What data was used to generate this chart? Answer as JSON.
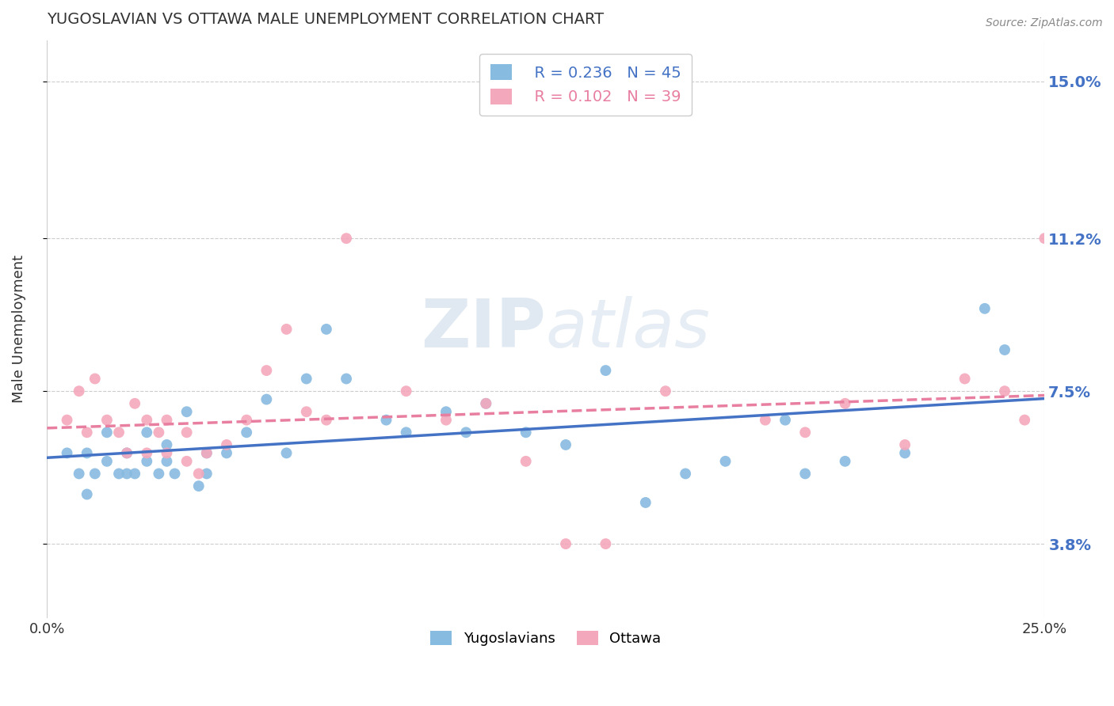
{
  "title": "YUGOSLAVIAN VS OTTAWA MALE UNEMPLOYMENT CORRELATION CHART",
  "source": "Source: ZipAtlas.com",
  "ylabel": "Male Unemployment",
  "xlim": [
    0.0,
    0.25
  ],
  "ylim": [
    0.02,
    0.16
  ],
  "yticks": [
    0.038,
    0.075,
    0.112,
    0.15
  ],
  "ytick_labels": [
    "3.8%",
    "7.5%",
    "11.2%",
    "15.0%"
  ],
  "xticks": [
    0.0,
    0.25
  ],
  "xtick_labels": [
    "0.0%",
    "25.0%"
  ],
  "yugoslavian_color": "#88BBE0",
  "ottawa_color": "#F4A8BC",
  "yugoslavian_line_color": "#4472C4",
  "ottawa_line_color": "#E87FA0",
  "watermark": "ZIPatlas",
  "legend_r_yugo": "R = 0.236",
  "legend_n_yugo": "N = 45",
  "legend_r_ottawa": "R = 0.102",
  "legend_n_ottawa": "N = 39",
  "yugo_scatter_x": [
    0.005,
    0.008,
    0.01,
    0.01,
    0.012,
    0.015,
    0.015,
    0.018,
    0.02,
    0.02,
    0.022,
    0.025,
    0.025,
    0.028,
    0.03,
    0.03,
    0.032,
    0.035,
    0.038,
    0.04,
    0.04,
    0.045,
    0.05,
    0.055,
    0.06,
    0.065,
    0.07,
    0.075,
    0.085,
    0.09,
    0.1,
    0.105,
    0.11,
    0.12,
    0.13,
    0.14,
    0.15,
    0.16,
    0.17,
    0.185,
    0.19,
    0.2,
    0.215,
    0.235,
    0.24
  ],
  "yugo_scatter_y": [
    0.06,
    0.055,
    0.06,
    0.05,
    0.055,
    0.058,
    0.065,
    0.055,
    0.055,
    0.06,
    0.055,
    0.058,
    0.065,
    0.055,
    0.058,
    0.062,
    0.055,
    0.07,
    0.052,
    0.055,
    0.06,
    0.06,
    0.065,
    0.073,
    0.06,
    0.078,
    0.09,
    0.078,
    0.068,
    0.065,
    0.07,
    0.065,
    0.072,
    0.065,
    0.062,
    0.08,
    0.048,
    0.055,
    0.058,
    0.068,
    0.055,
    0.058,
    0.06,
    0.095,
    0.085
  ],
  "ottawa_scatter_x": [
    0.005,
    0.008,
    0.01,
    0.012,
    0.015,
    0.018,
    0.02,
    0.022,
    0.025,
    0.025,
    0.028,
    0.03,
    0.03,
    0.035,
    0.035,
    0.038,
    0.04,
    0.045,
    0.05,
    0.055,
    0.06,
    0.065,
    0.07,
    0.075,
    0.09,
    0.1,
    0.11,
    0.12,
    0.13,
    0.14,
    0.155,
    0.18,
    0.19,
    0.2,
    0.215,
    0.23,
    0.24,
    0.245,
    0.25
  ],
  "ottawa_scatter_y": [
    0.068,
    0.075,
    0.065,
    0.078,
    0.068,
    0.065,
    0.06,
    0.072,
    0.068,
    0.06,
    0.065,
    0.06,
    0.068,
    0.058,
    0.065,
    0.055,
    0.06,
    0.062,
    0.068,
    0.08,
    0.09,
    0.07,
    0.068,
    0.112,
    0.075,
    0.068,
    0.072,
    0.058,
    0.038,
    0.038,
    0.075,
    0.068,
    0.065,
    0.072,
    0.062,
    0.078,
    0.075,
    0.068,
    0.112
  ]
}
